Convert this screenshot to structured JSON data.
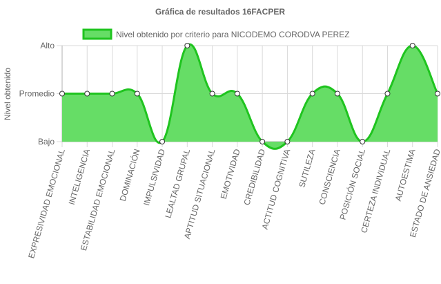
{
  "chart_data": {
    "type": "area",
    "title": "Gráfica de resultados 16FACPER",
    "ylabel": "Nivel obtenido",
    "xlabel": "",
    "y_levels": [
      "Bajo",
      "Promedio",
      "Alto"
    ],
    "ylim": [
      0,
      2
    ],
    "categories": [
      "EXPRESIVIDAD EMOCIONAL",
      "INTELIGENCIA",
      "ESTABILIDAD EMOCIONAL",
      "DOMINACIÓN",
      "IMPULSIVIDAD",
      "LEALTAD GRUPAL",
      "APTITUD SITUACIONAL",
      "EMOTIVIDAD",
      "CREDIBILIDAD",
      "ACTITUD COGNITIVA",
      "SUTILEZA",
      "CONSCIENCIA",
      "POSICIÓN SOCIAL",
      "CERTEZA INDIVIDUAL",
      "AUTOESTIMA",
      "ESTADO DE ANSIEDAD"
    ],
    "series": [
      {
        "name": "Nivel obtenido por criterio para NICODEMO CORODVA PEREZ",
        "values": [
          1,
          1,
          1,
          1,
          0,
          2,
          1,
          1,
          0,
          0,
          1,
          1,
          0,
          1,
          2,
          1
        ],
        "color": "#1fc41f",
        "fill": "#66dd66"
      }
    ],
    "grid": true,
    "legend": "top-center"
  }
}
